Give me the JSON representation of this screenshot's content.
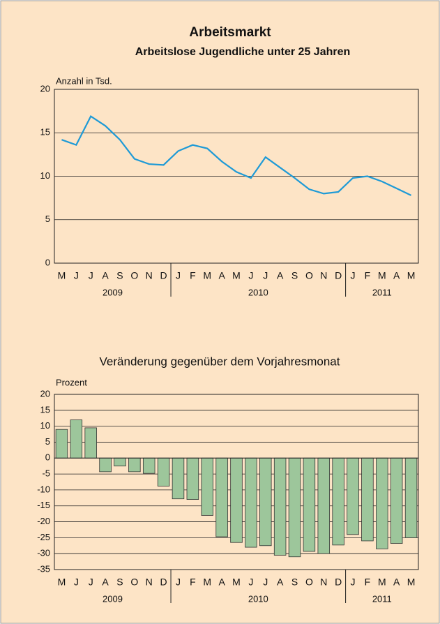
{
  "chart_data": [
    {
      "type": "line",
      "title": "Arbeitsmarkt",
      "subtitle": "Arbeitslose Jugendliche unter 25 Jahren",
      "y_label": "Anzahl in Tsd.",
      "categories": [
        "M",
        "J",
        "J",
        "A",
        "S",
        "O",
        "N",
        "D",
        "J",
        "F",
        "M",
        "A",
        "M",
        "J",
        "J",
        "A",
        "S",
        "O",
        "N",
        "D",
        "J",
        "F",
        "M",
        "A",
        "M"
      ],
      "year_labels": [
        "2009",
        "2010",
        "2011"
      ],
      "values": [
        14.2,
        13.6,
        16.9,
        15.8,
        14.2,
        12.0,
        11.4,
        11.3,
        12.9,
        13.6,
        13.2,
        11.7,
        10.5,
        9.8,
        12.2,
        11.0,
        9.8,
        8.5,
        8.0,
        8.2,
        9.8,
        10.0,
        9.4,
        8.6,
        7.8
      ],
      "color": "#1e9ad6",
      "ylim": [
        0,
        20
      ],
      "yticks": [
        0,
        5,
        10,
        15,
        20
      ],
      "grid": true
    },
    {
      "type": "bar",
      "title": "Veränderung gegenüber dem Vorjahresmonat",
      "y_label": "Prozent",
      "categories": [
        "M",
        "J",
        "J",
        "A",
        "S",
        "O",
        "N",
        "D",
        "J",
        "F",
        "M",
        "A",
        "M",
        "J",
        "J",
        "A",
        "S",
        "O",
        "N",
        "D",
        "J",
        "F",
        "M",
        "A",
        "M"
      ],
      "year_labels": [
        "2009",
        "2010",
        "2011"
      ],
      "values": [
        9,
        12,
        9.5,
        -4.3,
        -2.5,
        -4.3,
        -4.8,
        -8.8,
        -12.8,
        -13,
        -18,
        -24.7,
        -26.5,
        -28,
        -27.5,
        -30.5,
        -31,
        -29.3,
        -30,
        -27.3,
        -24,
        -26,
        -28.5,
        -26.8,
        -25
      ],
      "color": "#9dc69b",
      "ylim": [
        -35,
        20
      ],
      "yticks": [
        20,
        15,
        10,
        5,
        0,
        -5,
        -10,
        -15,
        -20,
        -25,
        -30,
        -35
      ],
      "grid": true
    }
  ]
}
